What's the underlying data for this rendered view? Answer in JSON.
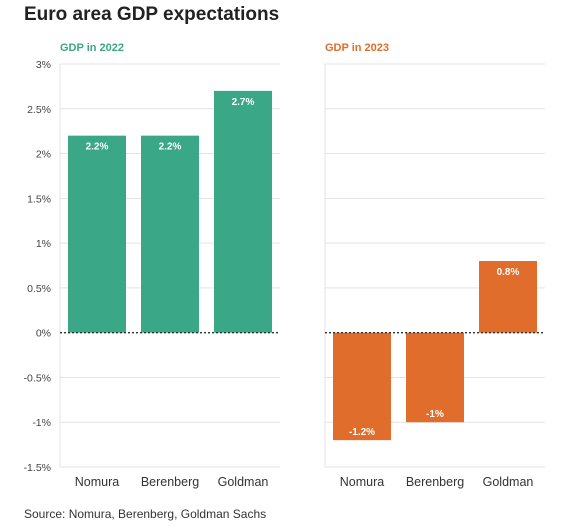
{
  "title": "Euro area GDP expectations",
  "source": "Source: Nomura, Berenberg, Goldman Sachs",
  "colors": {
    "gdp_2022": "#3aa786",
    "gdp_2023": "#e06d2b"
  },
  "chart_data": [
    {
      "type": "bar",
      "title": "GDP in 2022",
      "categories": [
        "Nomura",
        "Berenberg",
        "Goldman"
      ],
      "values": [
        2.2,
        2.2,
        2.7
      ],
      "value_labels": [
        "2.2%",
        "2.2%",
        "2.7%"
      ],
      "ylim": [
        -1.5,
        3
      ],
      "yticks": [
        3,
        2.5,
        2,
        1.5,
        1,
        0.5,
        0,
        -0.5,
        -1,
        -1.5
      ],
      "ytick_labels": [
        "3%",
        "2.5%",
        "2%",
        "1.5%",
        "1%",
        "0.5%",
        "0%",
        "-0.5%",
        "-1%",
        "-1.5%"
      ],
      "grid": true,
      "color": "#3aa786"
    },
    {
      "type": "bar",
      "title": "GDP in 2023",
      "categories": [
        "Nomura",
        "Berenberg",
        "Goldman"
      ],
      "values": [
        -1.2,
        -1,
        0.8
      ],
      "value_labels": [
        "-1.2%",
        "-1%",
        "0.8%"
      ],
      "ylim": [
        -1.5,
        3
      ],
      "grid": true,
      "color": "#e06d2b"
    }
  ]
}
